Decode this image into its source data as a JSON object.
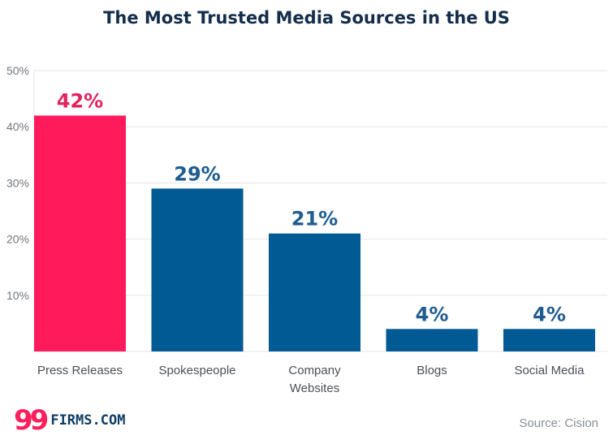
{
  "chart_data": {
    "type": "bar",
    "title": "The Most Trusted Media Sources in the US",
    "categories": [
      "Press Releases",
      "Spokespeople",
      "Company Websites",
      "Blogs",
      "Social Media"
    ],
    "values": [
      42,
      29,
      21,
      4,
      4
    ],
    "data_labels": [
      "42%",
      "29%",
      "21%",
      "4%",
      "4%"
    ],
    "ylim": [
      0,
      50
    ],
    "yticks": [
      "10%",
      "20%",
      "30%",
      "40%",
      "50%"
    ],
    "xlabel": "",
    "ylabel": "",
    "grid": true,
    "colors": {
      "highlight": "#ff1a5b",
      "bar": "#005a94",
      "highlight_label": "#e0245e",
      "bar_label": "#1f5c8f"
    }
  },
  "logo": {
    "numeral": "99",
    "text": "FIRMS.COM"
  },
  "source": "Source: Cision"
}
